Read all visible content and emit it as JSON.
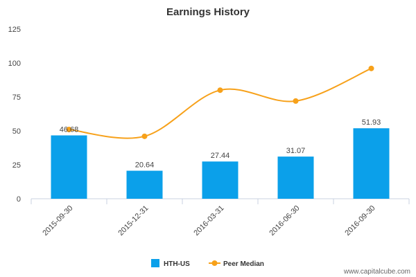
{
  "chart_data": {
    "type": "bar",
    "title": "Earnings History",
    "categories": [
      "2015-09-30",
      "2015-12-31",
      "2016-03-31",
      "2016-06-30",
      "2016-09-30"
    ],
    "series": [
      {
        "name": "HTH-US",
        "type": "bar",
        "values": [
          46.68,
          20.64,
          27.44,
          31.07,
          51.93
        ],
        "labels": [
          "46.68",
          "20.64",
          "27.44",
          "31.07",
          "51.93"
        ],
        "color": "#0ba0ea"
      },
      {
        "name": "Peer Median",
        "type": "line",
        "values": [
          51,
          46,
          80,
          72,
          96
        ],
        "color": "#f7a11a"
      }
    ],
    "ylim": [
      0,
      125
    ],
    "yticks": [
      0,
      25,
      50,
      75,
      100,
      125
    ],
    "ytick_labels": [
      "0",
      "25",
      "50",
      "75",
      "100",
      "125"
    ],
    "xlabel": "",
    "ylabel": "",
    "grid": false,
    "legend_placement": "bottom"
  },
  "credit": "www.capitalcube.com"
}
